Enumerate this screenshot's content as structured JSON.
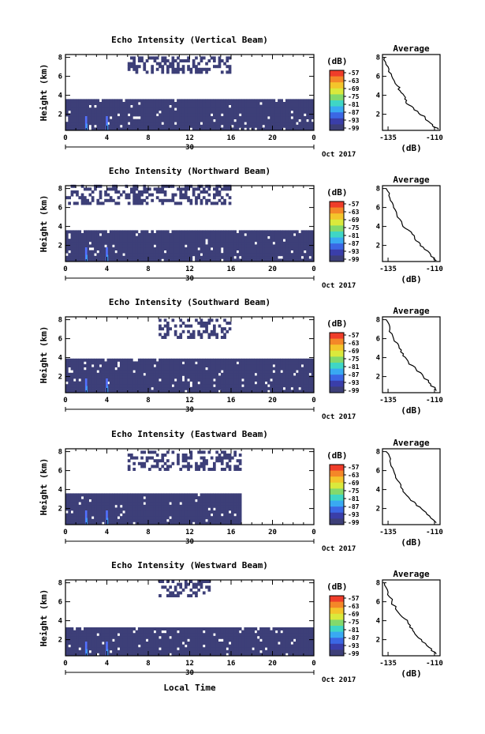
{
  "chart_data": [
    {
      "type": "heatmap",
      "title": "Echo Intensity (Vertical Beam)",
      "ylabel": "Height (km)",
      "xticks": [
        "0",
        "4",
        "8",
        "12",
        "16",
        "20",
        "0"
      ],
      "yticks": [
        "2",
        "4",
        "6",
        "8"
      ],
      "xlim": [
        0,
        24
      ],
      "ylim": [
        0.3,
        8.3
      ],
      "date_day": "30",
      "date_label": "Oct 2017",
      "colorbar": {
        "label": "(dB)",
        "ticks": [
          "-57",
          "-63",
          "-69",
          "-75",
          "-81",
          "-87",
          "-93",
          "-99"
        ]
      },
      "regions": [
        {
          "hours": [
            0,
            24
          ],
          "heights": [
            0.3,
            3.4
          ],
          "level": "-99 dB"
        },
        {
          "hours": [
            6,
            16
          ],
          "heights": [
            6.3,
            8.0
          ],
          "level": "-99 dB (sparse)"
        }
      ],
      "average_profile": {
        "title": "Average",
        "xlabel": "(dB)",
        "xticks": [
          "-135",
          "-110"
        ],
        "yticks": [
          "2",
          "4",
          "6",
          "8"
        ],
        "xlim": [
          -138,
          -107
        ],
        "ylim": [
          0.3,
          8.3
        ],
        "points": [
          [
            -137,
            8.0
          ],
          [
            -135,
            7.0
          ],
          [
            -133,
            6.0
          ],
          [
            -130,
            5.0
          ],
          [
            -128,
            4.3
          ],
          [
            -126,
            3.6
          ],
          [
            -124,
            3.0
          ],
          [
            -119,
            2.3
          ],
          [
            -115,
            1.6
          ],
          [
            -111,
            0.9
          ],
          [
            -108,
            0.4
          ]
        ]
      }
    },
    {
      "type": "heatmap",
      "title": "Echo Intensity (Northward Beam)",
      "ylabel": "Height (km)",
      "xticks": [
        "0",
        "4",
        "8",
        "12",
        "16",
        "20",
        "0"
      ],
      "yticks": [
        "2",
        "4",
        "6",
        "8"
      ],
      "xlim": [
        0,
        24
      ],
      "ylim": [
        0.3,
        8.3
      ],
      "date_day": "30",
      "date_label": "Oct 2017",
      "colorbar": {
        "label": "(dB)",
        "ticks": [
          "-57",
          "-63",
          "-69",
          "-75",
          "-81",
          "-87",
          "-93",
          "-99"
        ]
      },
      "regions": [
        {
          "hours": [
            0,
            24
          ],
          "heights": [
            0.3,
            3.3
          ],
          "level": "-99 dB"
        },
        {
          "hours": [
            0,
            16
          ],
          "heights": [
            6.3,
            8.2
          ],
          "level": "-99 dB (sparse)"
        }
      ],
      "average_profile": {
        "title": "Average",
        "xlabel": "(dB)",
        "xticks": [
          "-135",
          "-110"
        ],
        "yticks": [
          "2",
          "4",
          "6",
          "8"
        ],
        "xlim": [
          -138,
          -107
        ],
        "ylim": [
          0.3,
          8.3
        ],
        "points": [
          [
            -136,
            8.0
          ],
          [
            -134,
            7.0
          ],
          [
            -132,
            6.0
          ],
          [
            -130,
            5.0
          ],
          [
            -127,
            4.0
          ],
          [
            -122,
            3.2
          ],
          [
            -120,
            2.5
          ],
          [
            -116,
            1.8
          ],
          [
            -112,
            1.0
          ],
          [
            -109,
            0.4
          ]
        ]
      }
    },
    {
      "type": "heatmap",
      "title": "Echo Intensity (Southward Beam)",
      "ylabel": "Height (km)",
      "xticks": [
        "0",
        "4",
        "8",
        "12",
        "16",
        "20",
        "0"
      ],
      "yticks": [
        "2",
        "4",
        "6",
        "8"
      ],
      "xlim": [
        0,
        24
      ],
      "ylim": [
        0.3,
        8.3
      ],
      "date_day": "30",
      "date_label": "Oct 2017",
      "colorbar": {
        "label": "(dB)",
        "ticks": [
          "-57",
          "-63",
          "-69",
          "-75",
          "-81",
          "-87",
          "-93",
          "-99"
        ]
      },
      "regions": [
        {
          "hours": [
            0,
            24
          ],
          "heights": [
            0.3,
            3.7
          ],
          "level": "-99 dB"
        },
        {
          "hours": [
            9,
            16
          ],
          "heights": [
            6.0,
            8.0
          ],
          "level": "-99 dB (sparse)"
        }
      ],
      "average_profile": {
        "title": "Average",
        "xlabel": "(dB)",
        "xticks": [
          "-135",
          "-110"
        ],
        "yticks": [
          "2",
          "4",
          "6",
          "8"
        ],
        "xlim": [
          -138,
          -107
        ],
        "ylim": [
          0.3,
          8.3
        ],
        "points": [
          [
            -136,
            8.0
          ],
          [
            -134,
            7.0
          ],
          [
            -132,
            6.0
          ],
          [
            -129,
            5.0
          ],
          [
            -127,
            4.2
          ],
          [
            -124,
            3.5
          ],
          [
            -120,
            2.8
          ],
          [
            -116,
            2.0
          ],
          [
            -112,
            1.2
          ],
          [
            -109,
            0.5
          ]
        ]
      }
    },
    {
      "type": "heatmap",
      "title": "Echo Intensity (Eastward Beam)",
      "ylabel": "Height (km)",
      "xticks": [
        "0",
        "4",
        "8",
        "12",
        "16",
        "20",
        "0"
      ],
      "yticks": [
        "2",
        "4",
        "6",
        "8"
      ],
      "xlim": [
        0,
        24
      ],
      "ylim": [
        0.3,
        8.3
      ],
      "date_day": "30",
      "date_label": "Oct 2017",
      "colorbar": {
        "label": "(dB)",
        "ticks": [
          "-57",
          "-63",
          "-69",
          "-75",
          "-81",
          "-87",
          "-93",
          "-99"
        ]
      },
      "regions": [
        {
          "hours": [
            0,
            17
          ],
          "heights": [
            0.3,
            3.4
          ],
          "level": "-99 dB"
        },
        {
          "hours": [
            6,
            17
          ],
          "heights": [
            6.0,
            8.0
          ],
          "level": "-99 dB (sparse)"
        }
      ],
      "average_profile": {
        "title": "Average",
        "xlabel": "(dB)",
        "xticks": [
          "-135",
          "-110"
        ],
        "yticks": [
          "2",
          "4",
          "6",
          "8"
        ],
        "xlim": [
          -138,
          -107
        ],
        "ylim": [
          0.3,
          8.3
        ],
        "points": [
          [
            -136,
            8.0
          ],
          [
            -134,
            7.0
          ],
          [
            -132,
            6.0
          ],
          [
            -130,
            5.0
          ],
          [
            -127,
            4.0
          ],
          [
            -124,
            3.2
          ],
          [
            -120,
            2.5
          ],
          [
            -116,
            1.8
          ],
          [
            -112,
            1.0
          ],
          [
            -109,
            0.5
          ]
        ]
      }
    },
    {
      "type": "heatmap",
      "title": "Echo Intensity (Westward Beam)",
      "ylabel": "Height (km)",
      "xlabel": "Local Time",
      "xticks": [
        "0",
        "4",
        "8",
        "12",
        "16",
        "20",
        "0"
      ],
      "yticks": [
        "2",
        "4",
        "6",
        "8"
      ],
      "xlim": [
        0,
        24
      ],
      "ylim": [
        0.3,
        8.3
      ],
      "date_day": "30",
      "date_label": "Oct 2017",
      "colorbar": {
        "label": "(dB)",
        "ticks": [
          "-57",
          "-63",
          "-69",
          "-75",
          "-81",
          "-87",
          "-93",
          "-99"
        ]
      },
      "regions": [
        {
          "hours": [
            0,
            24
          ],
          "heights": [
            0.3,
            3.0
          ],
          "level": "-99 dB"
        },
        {
          "hours": [
            9,
            14
          ],
          "heights": [
            6.5,
            8.2
          ],
          "level": "-99 dB (sparse)"
        }
      ],
      "average_profile": {
        "title": "Average",
        "xlabel": "(dB)",
        "xticks": [
          "-135",
          "-110"
        ],
        "yticks": [
          "2",
          "4",
          "6",
          "8"
        ],
        "xlim": [
          -138,
          -107
        ],
        "ylim": [
          0.3,
          8.3
        ],
        "points": [
          [
            -137,
            8.0
          ],
          [
            -135,
            7.0
          ],
          [
            -133,
            6.0
          ],
          [
            -130,
            5.0
          ],
          [
            -126,
            4.2
          ],
          [
            -123,
            3.5
          ],
          [
            -121,
            2.8
          ],
          [
            -117,
            2.0
          ],
          [
            -113,
            1.2
          ],
          [
            -109,
            0.5
          ]
        ]
      }
    }
  ],
  "colors": {
    "fill": "#3d3f78",
    "weak": "#5270ff",
    "strong": "#3f9dff",
    "colormap": [
      "#ef3d2a",
      "#f48728",
      "#f4c52b",
      "#dae93c",
      "#83d96c",
      "#3fd6c5",
      "#39a9f2",
      "#3b67e4",
      "#3a3ea9",
      "#3d3f78"
    ]
  }
}
